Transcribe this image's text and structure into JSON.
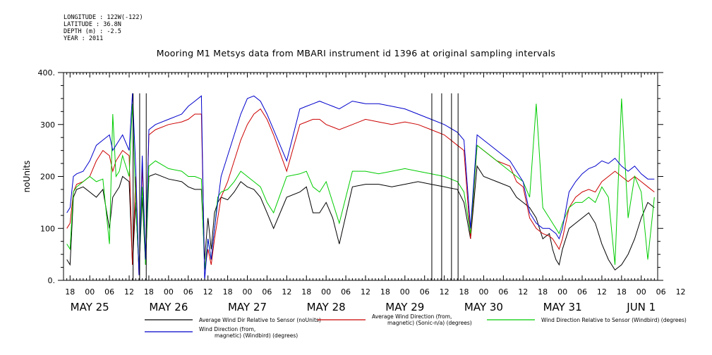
{
  "meta": {
    "lines": [
      "LONGITUDE : 122W(-122)",
      "LATITUDE : 36.8N",
      "DEPTH (m) : -2.5",
      "YEAR : 2011"
    ]
  },
  "chart_data": {
    "type": "line",
    "title": "Mooring M1 Metsys data from MBARI instrument id 1396 at original sampling intervals",
    "ylabel": "noUnits",
    "xlabel": "",
    "ylim": [
      0,
      400
    ],
    "yticks": [
      "0.",
      "100",
      "200",
      "300",
      "400."
    ],
    "xlim_hours": [
      -8,
      173
    ],
    "x_hour_labels": [
      "18",
      "00",
      "06",
      "12",
      "18",
      "00",
      "06",
      "12",
      "18",
      "00",
      "06",
      "12",
      "18",
      "00",
      "06",
      "12",
      "18",
      "00",
      "06",
      "12",
      "18",
      "00",
      "06",
      "12",
      "18",
      "00",
      "06",
      "12",
      "18",
      "00",
      "06",
      "12"
    ],
    "date_labels": [
      {
        "label": "MAY 25",
        "day": 0
      },
      {
        "label": "MAY 26",
        "day": 1
      },
      {
        "label": "MAY 27",
        "day": 2
      },
      {
        "label": "MAY 28",
        "day": 3
      },
      {
        "label": "MAY 29",
        "day": 4
      },
      {
        "label": "MAY 30",
        "day": 5
      },
      {
        "label": "MAY 31",
        "day": 6
      },
      {
        "label": "JUN  1",
        "day": 7
      }
    ],
    "grid": false,
    "legend": "bottom",
    "series": [
      {
        "name": "Average Wind Dir Relative to Sensor (noUnits)",
        "color": "#000000",
        "x": [
          -7,
          -6,
          -5,
          -4,
          -2,
          0,
          2,
          4,
          6,
          7,
          8,
          9,
          10,
          12,
          13,
          14,
          15,
          16,
          17,
          18,
          20,
          24,
          28,
          30,
          32,
          34,
          35,
          36,
          37,
          38,
          39,
          40,
          42,
          44,
          46,
          48,
          50,
          52,
          54,
          56,
          60,
          64,
          66,
          68,
          70,
          72,
          74,
          76,
          80,
          84,
          88,
          92,
          96,
          100,
          104,
          108,
          112,
          114,
          116,
          118,
          120,
          124,
          128,
          130,
          132,
          134,
          136,
          138,
          140,
          141,
          142,
          143,
          144,
          146,
          148,
          150,
          152,
          154,
          156,
          158,
          160,
          162,
          164,
          166,
          168,
          170,
          172
        ],
        "y": [
          40,
          30,
          160,
          175,
          180,
          170,
          160,
          175,
          100,
          160,
          170,
          180,
          200,
          190,
          30,
          150,
          20,
          160,
          30,
          200,
          205,
          195,
          190,
          180,
          175,
          175,
          40,
          120,
          60,
          130,
          150,
          160,
          155,
          170,
          190,
          180,
          175,
          160,
          130,
          100,
          160,
          170,
          180,
          130,
          130,
          150,
          120,
          70,
          180,
          185,
          185,
          180,
          185,
          190,
          185,
          180,
          175,
          150,
          80,
          220,
          200,
          190,
          180,
          160,
          150,
          140,
          120,
          80,
          90,
          60,
          40,
          30,
          60,
          100,
          110,
          120,
          130,
          110,
          70,
          40,
          20,
          30,
          50,
          80,
          120,
          150,
          140
        ]
      },
      {
        "name": "Average Wind Direction (from, magnetic) (Sonic-n/a) (degrees)",
        "color": "#cc0000",
        "x": [
          -7,
          -6,
          -5,
          -4,
          -2,
          0,
          2,
          4,
          6,
          7,
          8,
          9,
          10,
          12,
          13,
          14,
          15,
          16,
          17,
          18,
          20,
          24,
          28,
          30,
          32,
          34,
          35,
          36,
          37,
          38,
          39,
          40,
          42,
          44,
          46,
          48,
          50,
          52,
          54,
          56,
          60,
          64,
          66,
          68,
          70,
          72,
          74,
          76,
          80,
          84,
          88,
          92,
          96,
          100,
          104,
          108,
          112,
          114,
          116,
          118,
          120,
          124,
          128,
          130,
          132,
          134,
          136,
          138,
          140,
          141,
          142,
          143,
          144,
          146,
          148,
          150,
          152,
          154,
          156,
          158,
          160,
          162,
          164,
          166,
          168,
          170,
          172
        ],
        "y": [
          100,
          110,
          170,
          185,
          190,
          200,
          230,
          250,
          240,
          210,
          230,
          240,
          250,
          240,
          30,
          200,
          10,
          220,
          40,
          280,
          290,
          300,
          305,
          310,
          320,
          320,
          20,
          60,
          30,
          80,
          120,
          160,
          190,
          230,
          270,
          300,
          320,
          330,
          310,
          280,
          210,
          300,
          305,
          310,
          310,
          300,
          295,
          290,
          300,
          310,
          305,
          300,
          305,
          300,
          290,
          280,
          260,
          250,
          80,
          260,
          250,
          230,
          220,
          190,
          180,
          120,
          100,
          90,
          85,
          80,
          70,
          60,
          80,
          140,
          160,
          170,
          175,
          170,
          190,
          200,
          210,
          200,
          190,
          200,
          190,
          180,
          170
        ]
      },
      {
        "name": "Wind Direction Relative to Sensor (Windbird) (degrees)",
        "color": "#00cc00",
        "x": [
          -7,
          -6,
          -5,
          -4,
          -2,
          0,
          2,
          4,
          6,
          7,
          8,
          9,
          10,
          12,
          13,
          14,
          15,
          16,
          17,
          18,
          20,
          24,
          28,
          30,
          32,
          34,
          35,
          36,
          37,
          38,
          39,
          40,
          42,
          44,
          46,
          48,
          50,
          52,
          54,
          56,
          60,
          64,
          66,
          68,
          70,
          72,
          74,
          76,
          80,
          84,
          88,
          92,
          96,
          100,
          104,
          108,
          112,
          114,
          116,
          118,
          120,
          124,
          128,
          130,
          132,
          134,
          136,
          138,
          140,
          141,
          142,
          143,
          144,
          146,
          148,
          150,
          152,
          154,
          156,
          158,
          160,
          162,
          164,
          166,
          168,
          170,
          172
        ],
        "y": [
          70,
          60,
          170,
          180,
          190,
          200,
          190,
          195,
          70,
          320,
          200,
          210,
          240,
          200,
          340,
          150,
          20,
          180,
          30,
          220,
          230,
          215,
          210,
          200,
          200,
          195,
          20,
          80,
          40,
          100,
          160,
          170,
          175,
          190,
          210,
          200,
          190,
          180,
          150,
          130,
          200,
          205,
          210,
          180,
          170,
          190,
          150,
          110,
          210,
          210,
          205,
          210,
          215,
          210,
          205,
          200,
          190,
          170,
          90,
          260,
          250,
          230,
          210,
          200,
          190,
          160,
          340,
          140,
          120,
          110,
          100,
          90,
          110,
          140,
          150,
          150,
          160,
          150,
          180,
          160,
          30,
          350,
          120,
          200,
          170,
          40,
          160
        ]
      },
      {
        "name": "Wind Direction (from, magnetic) (Windbird) (degrees)",
        "color": "#0000cc",
        "x": [
          -7,
          -6,
          -5,
          -4,
          -2,
          0,
          2,
          4,
          6,
          7,
          8,
          9,
          10,
          12,
          13,
          14,
          15,
          16,
          17,
          18,
          20,
          24,
          28,
          30,
          32,
          34,
          35,
          36,
          37,
          38,
          39,
          40,
          42,
          44,
          46,
          48,
          50,
          52,
          54,
          56,
          60,
          64,
          66,
          68,
          70,
          72,
          74,
          76,
          80,
          84,
          88,
          92,
          96,
          100,
          104,
          108,
          112,
          114,
          116,
          118,
          120,
          124,
          128,
          130,
          132,
          134,
          136,
          138,
          140,
          141,
          142,
          143,
          144,
          146,
          148,
          150,
          152,
          154,
          156,
          158,
          160,
          162,
          164,
          166,
          168,
          170,
          172
        ],
        "y": [
          130,
          140,
          200,
          205,
          210,
          230,
          260,
          270,
          280,
          250,
          260,
          270,
          280,
          250,
          360,
          220,
          10,
          240,
          40,
          290,
          300,
          310,
          320,
          335,
          345,
          355,
          0,
          80,
          40,
          100,
          150,
          200,
          240,
          280,
          320,
          350,
          355,
          345,
          320,
          290,
          230,
          330,
          335,
          340,
          345,
          340,
          335,
          330,
          345,
          340,
          340,
          335,
          330,
          320,
          310,
          300,
          285,
          270,
          100,
          280,
          270,
          250,
          230,
          210,
          190,
          130,
          110,
          100,
          100,
          95,
          90,
          80,
          100,
          170,
          190,
          205,
          215,
          220,
          230,
          225,
          235,
          220,
          210,
          220,
          205,
          195,
          195
        ]
      },
      {
        "name": "",
        "color": "#000000",
        "spikes": [
          13.2,
          15.2,
          17.2,
          104.2,
          107.2,
          110.2,
          112.2
        ]
      }
    ],
    "legend_items": [
      {
        "text": [
          "Average Wind Dir Relative to Sensor (noUnits)"
        ],
        "color": "#000000"
      },
      {
        "text": [
          "Average Wind Direction (from,",
          "magnetic) (Sonic-n/a) (degrees)"
        ],
        "color": "#cc0000"
      },
      {
        "text": [
          "Wind Direction Relative to Sensor (Windbird) (degrees)"
        ],
        "color": "#00cc00"
      },
      {
        "text": [
          "Wind Direction (from,",
          "magnetic) (Windbird) (degrees)"
        ],
        "color": "#0000cc"
      }
    ]
  }
}
